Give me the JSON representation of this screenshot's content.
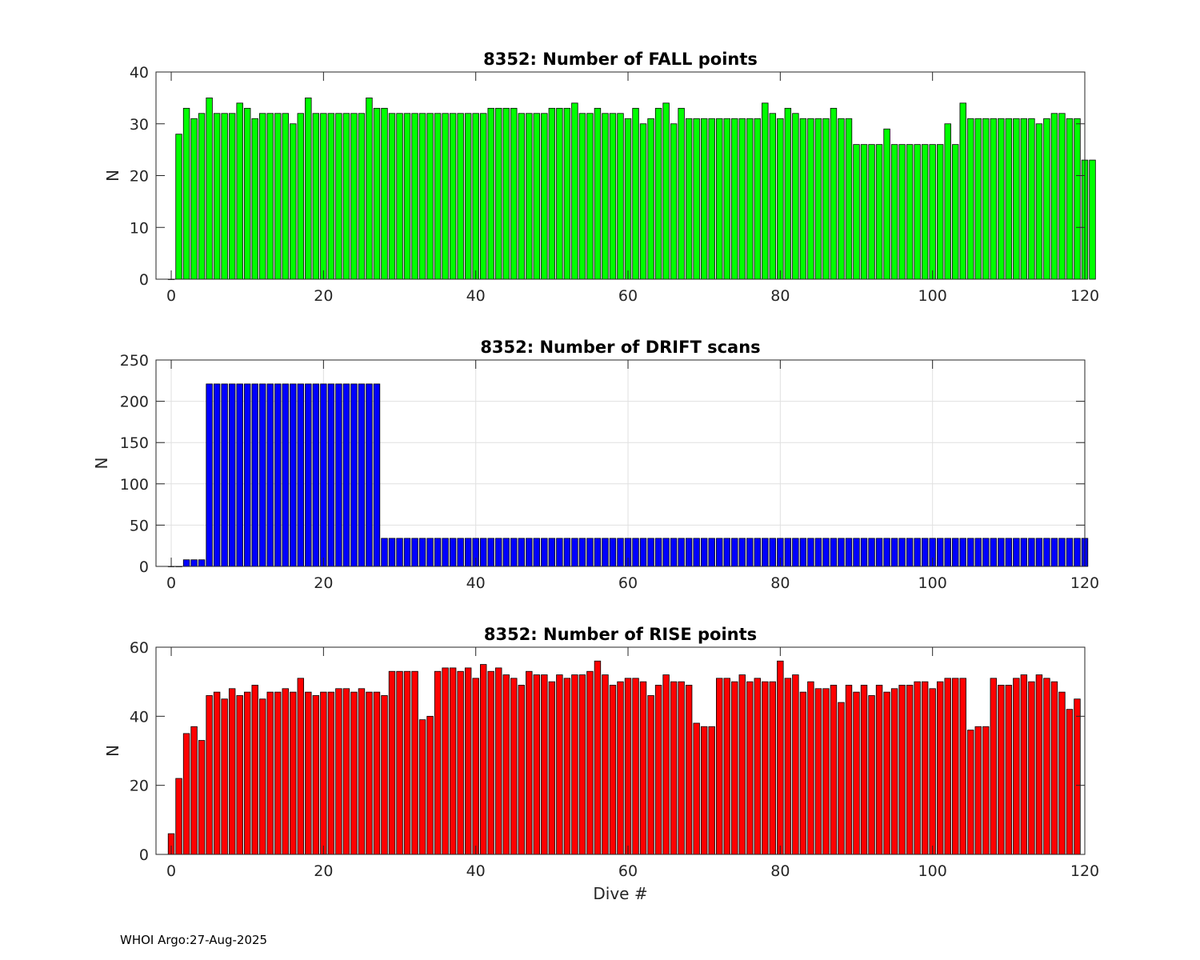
{
  "footer": {
    "text": "WHOI Argo:27-Aug-2025"
  },
  "chart_data": [
    {
      "type": "bar",
      "title": "8352: Number of FALL points",
      "xlabel": "",
      "ylabel": "N",
      "xlim": [
        -2,
        120
      ],
      "ylim": [
        0,
        40
      ],
      "xticks": [
        0,
        20,
        40,
        60,
        80,
        100,
        120
      ],
      "yticks": [
        0,
        10,
        20,
        30,
        40
      ],
      "grid": false,
      "color": "#00ff00",
      "x_start": 0,
      "values": [
        0,
        28,
        33,
        31,
        32,
        35,
        32,
        32,
        32,
        34,
        33,
        31,
        32,
        32,
        32,
        32,
        30,
        32,
        35,
        32,
        32,
        32,
        32,
        32,
        32,
        32,
        35,
        33,
        33,
        32,
        32,
        32,
        32,
        32,
        32,
        32,
        32,
        32,
        32,
        32,
        32,
        32,
        33,
        33,
        33,
        33,
        32,
        32,
        32,
        32,
        33,
        33,
        33,
        34,
        32,
        32,
        33,
        32,
        32,
        32,
        31,
        33,
        30,
        31,
        33,
        34,
        30,
        33,
        31,
        31,
        31,
        31,
        31,
        31,
        31,
        31,
        31,
        31,
        34,
        32,
        31,
        33,
        32,
        31,
        31,
        31,
        31,
        33,
        31,
        31,
        26,
        26,
        26,
        26,
        29,
        26,
        26,
        26,
        26,
        26,
        26,
        26,
        30,
        26,
        34,
        31,
        31,
        31,
        31,
        31,
        31,
        31,
        31,
        31,
        30,
        31,
        32,
        32,
        31,
        31,
        23,
        23
      ]
    },
    {
      "type": "bar",
      "title": "8352: Number of DRIFT scans",
      "xlabel": "",
      "ylabel": "N",
      "xlim": [
        -2,
        120
      ],
      "ylim": [
        0,
        250
      ],
      "xticks": [
        0,
        20,
        40,
        60,
        80,
        100,
        120
      ],
      "yticks": [
        0,
        50,
        100,
        150,
        200,
        250
      ],
      "grid": true,
      "color": "#0000ff",
      "x_start": 0,
      "values": [
        0,
        0,
        8,
        8,
        8,
        221,
        221,
        221,
        221,
        221,
        221,
        221,
        221,
        221,
        221,
        221,
        221,
        221,
        221,
        221,
        221,
        221,
        221,
        221,
        221,
        221,
        221,
        221,
        34,
        34,
        34,
        34,
        34,
        34,
        34,
        34,
        34,
        34,
        34,
        34,
        34,
        34,
        34,
        34,
        34,
        34,
        34,
        34,
        34,
        34,
        34,
        34,
        34,
        34,
        34,
        34,
        34,
        34,
        34,
        34,
        34,
        34,
        34,
        34,
        34,
        34,
        34,
        34,
        34,
        34,
        34,
        34,
        34,
        34,
        34,
        34,
        34,
        34,
        34,
        34,
        34,
        34,
        34,
        34,
        34,
        34,
        34,
        34,
        34,
        34,
        34,
        34,
        34,
        34,
        34,
        34,
        34,
        34,
        34,
        34,
        34,
        34,
        34,
        34,
        34,
        34,
        34,
        34,
        34,
        34,
        34,
        34,
        34,
        34,
        34,
        34,
        34,
        34,
        34,
        34,
        34
      ]
    },
    {
      "type": "bar",
      "title": "8352: Number of RISE points",
      "xlabel": "Dive #",
      "ylabel": "N",
      "xlim": [
        -2,
        120
      ],
      "ylim": [
        0,
        60
      ],
      "xticks": [
        0,
        20,
        40,
        60,
        80,
        100,
        120
      ],
      "yticks": [
        0,
        20,
        40,
        60
      ],
      "grid": false,
      "color": "#ff0000",
      "x_start": 0,
      "values": [
        6,
        22,
        35,
        37,
        33,
        46,
        47,
        45,
        48,
        46,
        47,
        49,
        45,
        47,
        47,
        48,
        47,
        51,
        47,
        46,
        47,
        47,
        48,
        48,
        47,
        48,
        47,
        47,
        46,
        53,
        53,
        53,
        53,
        39,
        40,
        53,
        54,
        54,
        53,
        54,
        51,
        55,
        53,
        54,
        52,
        51,
        49,
        53,
        52,
        52,
        50,
        52,
        51,
        52,
        52,
        53,
        56,
        52,
        49,
        50,
        51,
        51,
        50,
        46,
        49,
        52,
        50,
        50,
        49,
        38,
        37,
        37,
        51,
        51,
        50,
        52,
        50,
        51,
        50,
        50,
        56,
        51,
        52,
        47,
        50,
        48,
        48,
        49,
        44,
        49,
        47,
        49,
        46,
        49,
        47,
        48,
        49,
        49,
        50,
        50,
        48,
        50,
        51,
        51,
        51,
        36,
        37,
        37,
        51,
        49,
        49,
        51,
        52,
        50,
        52,
        51,
        50,
        47,
        42,
        45
      ]
    }
  ]
}
